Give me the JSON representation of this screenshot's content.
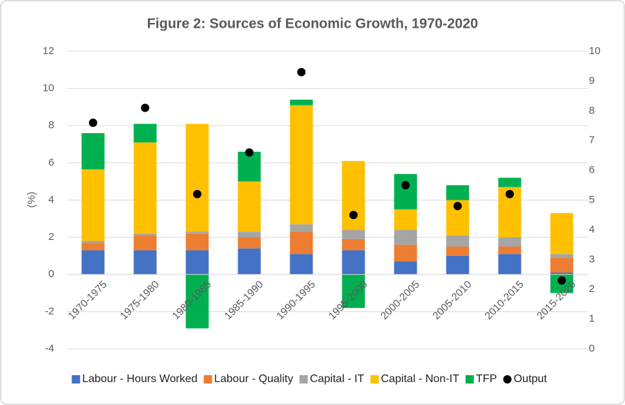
{
  "chart_data": {
    "type": "bar",
    "stacked": true,
    "title": "Figure 2: Sources of Economic Growth, 1970-2020",
    "y_label": "(%)",
    "categories": [
      "1970-1975",
      "1975-1980",
      "1980-1985",
      "1985-1990",
      "1990-1995",
      "1995-2000",
      "2000-2005",
      "2005-2010",
      "2010-2015",
      "2015-2020"
    ],
    "series": [
      {
        "name": "Labour - Hours Worked",
        "color": "#4472c4",
        "values": [
          1.3,
          1.3,
          1.3,
          1.4,
          1.1,
          1.3,
          0.7,
          1.0,
          1.1,
          0.1
        ]
      },
      {
        "name": "Labour - Quality",
        "color": "#ed7d31",
        "values": [
          0.4,
          0.8,
          0.9,
          0.6,
          1.2,
          0.6,
          0.9,
          0.5,
          0.4,
          0.8
        ]
      },
      {
        "name": "Capital - IT",
        "color": "#a5a5a5",
        "values": [
          0.1,
          0.1,
          0.1,
          0.3,
          0.4,
          0.5,
          0.8,
          0.6,
          0.5,
          0.2
        ]
      },
      {
        "name": "Capital - Non-IT",
        "color": "#ffc000",
        "values": [
          3.85,
          4.9,
          5.8,
          2.7,
          6.4,
          3.7,
          1.1,
          1.9,
          2.7,
          2.2
        ]
      },
      {
        "name": "TFP",
        "color": "#00b050",
        "values": [
          1.95,
          1.0,
          -2.9,
          1.6,
          0.3,
          -1.8,
          1.9,
          0.8,
          0.5,
          -1.0
        ]
      },
      {
        "name": "Output",
        "color": "#000000",
        "marker": "circle",
        "axis": "y2",
        "values": [
          7.6,
          8.1,
          5.2,
          6.6,
          9.3,
          4.5,
          5.5,
          4.8,
          5.2,
          2.3
        ]
      }
    ],
    "ylim": [
      -4,
      12
    ],
    "yticks": [
      -4,
      -2,
      0,
      2,
      4,
      6,
      8,
      10,
      12
    ],
    "y2lim": [
      0,
      10
    ],
    "y2ticks": [
      0,
      1,
      2,
      3,
      4,
      5,
      6,
      7,
      8,
      9,
      10
    ],
    "grid": true,
    "legend": "bottom"
  }
}
